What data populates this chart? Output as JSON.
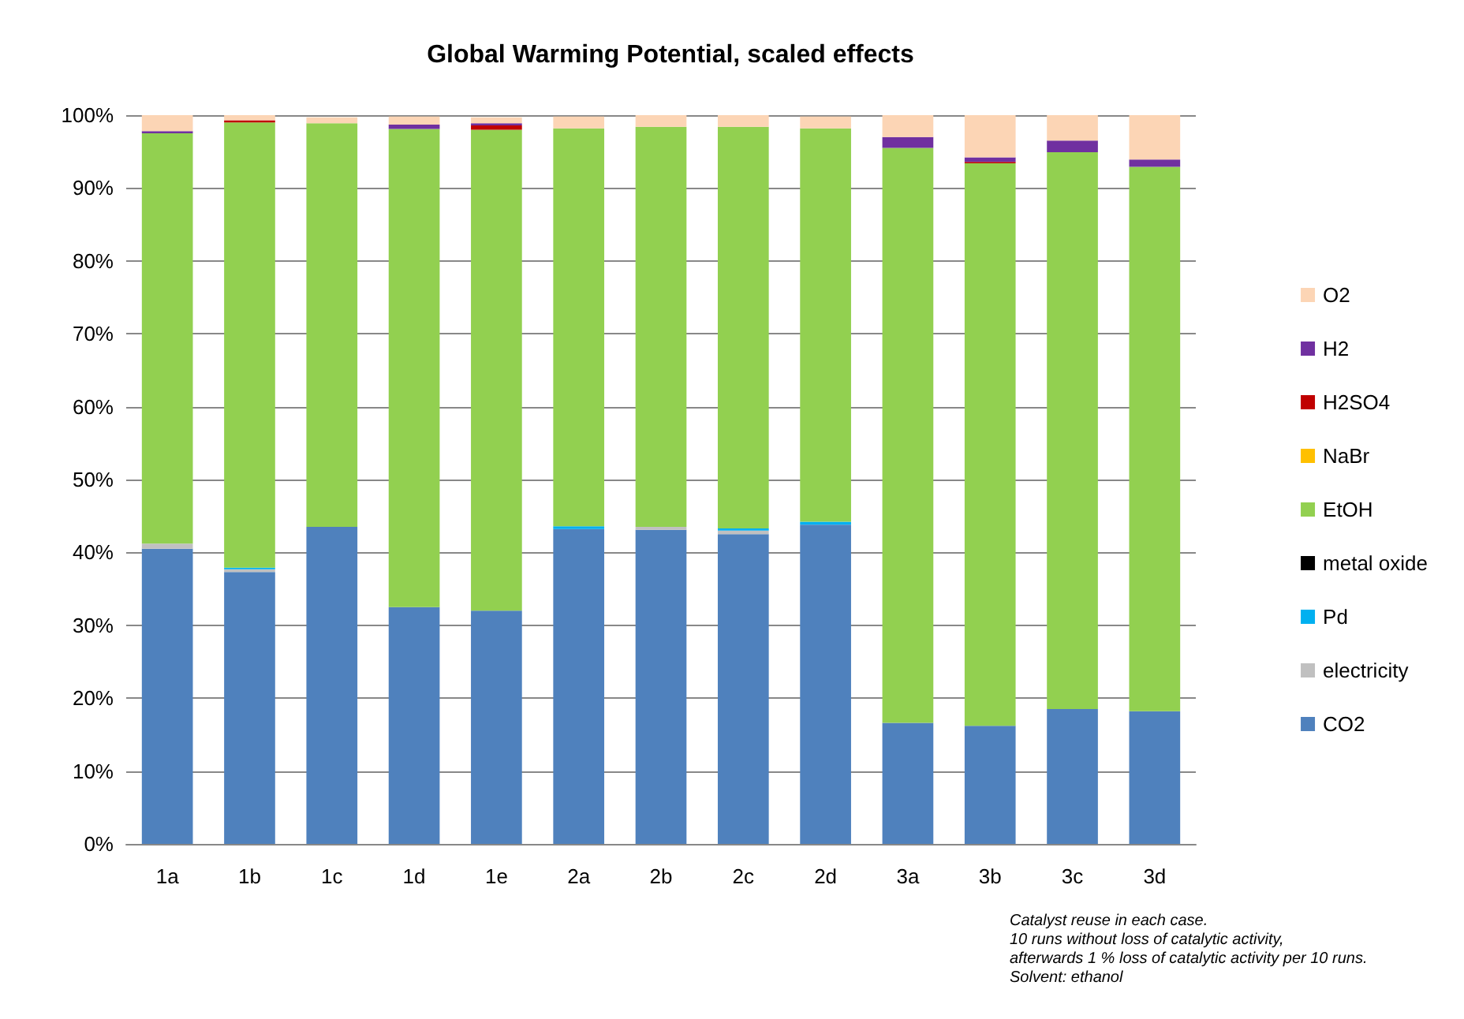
{
  "chart_data": {
    "type": "bar",
    "title": "Global Warming Potential, scaled effects",
    "stacked": true,
    "legend": "right",
    "grid": "y",
    "categories": [
      "1a",
      "1b",
      "1c",
      "1d",
      "1e",
      "2a",
      "2b",
      "2c",
      "2d",
      "3a",
      "3b",
      "3c",
      "3d"
    ],
    "ylim": [
      0,
      100
    ],
    "yticks": [
      {
        "value": 0,
        "label": "0%"
      },
      {
        "value": 10,
        "label": "10%"
      },
      {
        "value": 20,
        "label": "20%"
      },
      {
        "value": 30,
        "label": "30%"
      },
      {
        "value": 40,
        "label": "40%"
      },
      {
        "value": 50,
        "label": "50%"
      },
      {
        "value": 60,
        "label": "60%"
      },
      {
        "value": 70,
        "label": "70%"
      },
      {
        "value": 80,
        "label": "80%"
      },
      {
        "value": 90,
        "label": "90%"
      },
      {
        "value": 100,
        "label": "100%"
      }
    ],
    "series": [
      {
        "name": "CO2",
        "color": "#4f81bd",
        "values": [
          40.5,
          37.3,
          43.5,
          32.5,
          32.0,
          43.2,
          43.1,
          42.5,
          43.8,
          16.6,
          16.2,
          18.5,
          18.2
        ]
      },
      {
        "name": "electricity",
        "color": "#c0c0c0",
        "values": [
          0.7,
          0.4,
          null,
          null,
          null,
          null,
          0.4,
          0.5,
          null,
          0,
          0,
          0,
          0
        ]
      },
      {
        "name": "Pd",
        "color": "#00b0f0",
        "values": [
          0,
          0.2,
          0,
          0,
          0,
          0.4,
          0,
          0.3,
          0.4,
          0,
          0,
          0,
          0
        ]
      },
      {
        "name": "metal oxide",
        "color": "#000000",
        "values": [
          0,
          0,
          0,
          0,
          0,
          0,
          0,
          0,
          0,
          0,
          0,
          0,
          0
        ]
      },
      {
        "name": "EtOH",
        "color": "#92d050",
        "values": [
          56.3,
          61.1,
          55.4,
          65.6,
          66.0,
          54.6,
          54.9,
          55.1,
          54.0,
          78.9,
          77.2,
          76.4,
          74.7
        ]
      },
      {
        "name": "NaBr",
        "color": "#ffc000",
        "values": [
          0,
          0,
          0,
          0,
          0,
          0,
          0,
          0,
          0,
          0,
          0,
          0,
          0
        ]
      },
      {
        "name": "H2SO4",
        "color": "#c00000",
        "values": [
          0,
          0.3,
          0,
          0,
          0.6,
          0,
          0,
          0,
          0,
          0,
          0.2,
          0,
          0
        ]
      },
      {
        "name": "H2",
        "color": "#7030a0",
        "values": [
          0.3,
          0,
          0,
          0.6,
          0.3,
          0,
          0,
          0,
          0,
          1.5,
          0.6,
          1.6,
          1.0
        ]
      },
      {
        "name": "O2",
        "color": "#fcd5b5",
        "values": [
          2.2,
          0.7,
          0.8,
          1.1,
          0.8,
          1.6,
          1.6,
          1.6,
          1.6,
          3.0,
          5.8,
          3.5,
          6.1
        ]
      }
    ],
    "annotations": [
      "Catalyst reuse in each case.\n10 runs without loss of catalytic activity,\nafterwards 1 % loss of catalytic activity per 10 runs.\nSolvent: ethanol"
    ]
  }
}
